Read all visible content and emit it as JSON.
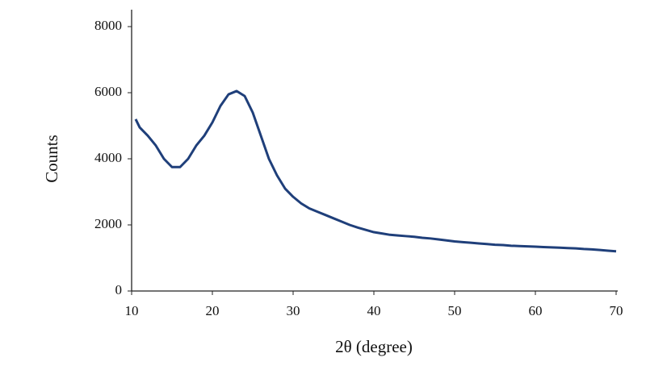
{
  "chart_data": {
    "type": "line",
    "x_label": "2θ (degree)",
    "y_label": "Counts",
    "x": [
      10.5,
      11,
      12,
      13,
      14,
      15,
      16,
      17,
      18,
      19,
      20,
      21,
      22,
      23,
      24,
      25,
      26,
      27,
      28,
      29,
      30,
      31,
      32,
      33,
      34,
      35,
      36,
      37,
      38,
      39,
      40,
      41,
      42,
      43,
      44,
      45,
      46,
      47,
      48,
      49,
      50,
      51,
      52,
      53,
      54,
      55,
      56,
      57,
      58,
      59,
      60,
      61,
      62,
      63,
      64,
      65,
      66,
      67,
      68,
      69,
      70
    ],
    "series": [
      {
        "color": "#1f3f7a",
        "values": [
          5200,
          4950,
          4700,
          4400,
          4000,
          3750,
          3750,
          4000,
          4400,
          4700,
          5100,
          5600,
          5950,
          6050,
          5900,
          5400,
          4700,
          4000,
          3500,
          3100,
          2850,
          2650,
          2500,
          2400,
          2300,
          2200,
          2100,
          2000,
          1920,
          1850,
          1780,
          1740,
          1700,
          1680,
          1660,
          1640,
          1610,
          1590,
          1560,
          1530,
          1500,
          1480,
          1460,
          1440,
          1420,
          1400,
          1390,
          1370,
          1360,
          1350,
          1340,
          1330,
          1320,
          1310,
          1300,
          1290,
          1270,
          1260,
          1240,
          1220,
          1200
        ]
      }
    ],
    "xlim": [
      10,
      70
    ],
    "xticks": [
      10,
      20,
      30,
      40,
      50,
      60,
      70
    ],
    "ylim": [
      0,
      8000
    ],
    "yticks": [
      0,
      2000,
      4000,
      6000,
      8000
    ],
    "grid": false
  }
}
